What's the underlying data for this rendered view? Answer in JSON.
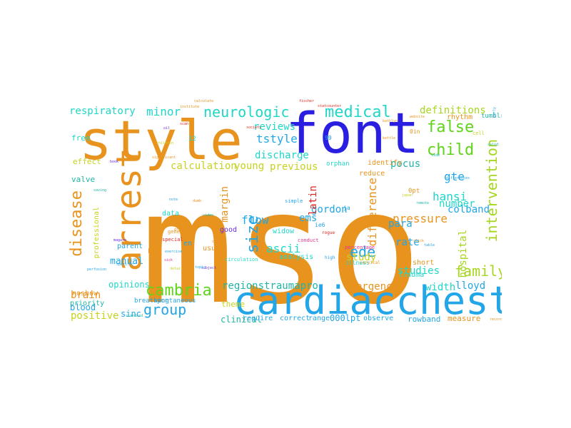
{
  "palette": {
    "orange": "#e8931e",
    "blue": "#2a1fe0",
    "sky": "#22a6e8",
    "green": "#5fd41a",
    "lime": "#a7d61f",
    "yellowgreen": "#c7d21f",
    "cyan": "#1fd6c8",
    "teal": "#1fb5a6",
    "red": "#e0261f",
    "pink": "#e2368b",
    "purple": "#6a2fe0",
    "gray": "#8a8a8a"
  },
  "words": [
    {
      "text": "mso",
      "color": "orange"
    },
    {
      "text": "font",
      "color": "blue"
    },
    {
      "text": "style",
      "color": "orange"
    },
    {
      "text": "cardiacchest",
      "color": "sky"
    },
    {
      "text": "arrest",
      "color": "orange"
    },
    {
      "text": "disease",
      "color": "orange"
    },
    {
      "text": "cambria",
      "color": "green"
    },
    {
      "text": "group",
      "color": "sky"
    },
    {
      "text": "medical",
      "color": "cyan"
    },
    {
      "text": "child",
      "color": "green"
    },
    {
      "text": "false",
      "color": "green"
    },
    {
      "text": "neurologic",
      "color": "cyan"
    },
    {
      "text": "intervention",
      "color": "lime"
    },
    {
      "text": "family",
      "color": "lime"
    },
    {
      "text": "ede",
      "color": "sky"
    },
    {
      "text": "size",
      "color": "sky"
    },
    {
      "text": "minor",
      "color": "cyan"
    },
    {
      "text": "respiratory",
      "color": "cyan"
    },
    {
      "text": "definitions",
      "color": "lime"
    },
    {
      "text": "difference",
      "color": "orange"
    },
    {
      "text": "pressure",
      "color": "orange"
    },
    {
      "text": "hansi",
      "color": "cyan"
    },
    {
      "text": "gte",
      "color": "sky"
    },
    {
      "text": "tstyle",
      "color": "sky"
    },
    {
      "text": "previous",
      "color": "yellowgreen"
    },
    {
      "text": "pocus",
      "color": "teal"
    },
    {
      "text": "calculation",
      "color": "yellowgreen"
    },
    {
      "text": "young",
      "color": "yellowgreen"
    },
    {
      "text": "margin",
      "color": "orange"
    },
    {
      "text": "ascii",
      "color": "cyan"
    },
    {
      "text": "flow",
      "color": "sky"
    },
    {
      "text": "gordon",
      "color": "sky"
    },
    {
      "text": "emergency",
      "color": "orange"
    },
    {
      "text": "regionstraumapro",
      "color": "teal"
    },
    {
      "text": "brain",
      "color": "orange"
    },
    {
      "text": "positive",
      "color": "yellowgreen"
    },
    {
      "text": "lloyd",
      "color": "sky"
    },
    {
      "text": "width",
      "color": "cyan"
    },
    {
      "text": "rate",
      "color": "sky"
    },
    {
      "text": "para",
      "color": "sky"
    },
    {
      "text": "studies",
      "color": "cyan"
    },
    {
      "text": "study",
      "color": "yellowgreen"
    },
    {
      "text": "hospital",
      "color": "lime"
    },
    {
      "text": "latin",
      "color": "red"
    },
    {
      "text": "ems",
      "color": "sky"
    },
    {
      "text": "reviews",
      "color": "cyan"
    },
    {
      "text": "discharge",
      "color": "cyan"
    },
    {
      "text": "colband",
      "color": "sky"
    },
    {
      "text": "number",
      "color": "cyan"
    },
    {
      "text": "injury",
      "color": "orange"
    },
    {
      "text": "manual",
      "color": "sky"
    },
    {
      "text": "sinc",
      "color": "sky"
    },
    {
      "text": "clinical",
      "color": "teal"
    },
    {
      "text": "require",
      "color": "sky"
    },
    {
      "text": "correct",
      "color": "sky"
    },
    {
      "text": "range",
      "color": "sky"
    },
    {
      "text": "000lpt",
      "color": "sky"
    },
    {
      "text": "observe",
      "color": "sky"
    },
    {
      "text": "rowband",
      "color": "sky"
    },
    {
      "text": "measure",
      "color": "orange"
    },
    {
      "text": "theme",
      "color": "yellowgreen"
    },
    {
      "text": "blood",
      "color": "sky"
    },
    {
      "text": "breathing",
      "color": "sky"
    },
    {
      "text": "spontaneous",
      "color": "sky"
    },
    {
      "text": "opinions",
      "color": "cyan"
    },
    {
      "text": "noshow",
      "color": "orange"
    },
    {
      "text": "priority",
      "color": "teal"
    },
    {
      "text": "free",
      "color": "cyan"
    },
    {
      "text": "effect",
      "color": "yellowgreen"
    },
    {
      "text": "valve",
      "color": "teal"
    },
    {
      "text": "professional",
      "color": "yellowgreen"
    },
    {
      "text": "data",
      "color": "cyan"
    },
    {
      "text": "parent",
      "color": "sky"
    },
    {
      "text": "usual",
      "color": "orange"
    },
    {
      "text": "widow",
      "color": "cyan"
    },
    {
      "text": "analysis",
      "color": "cyan"
    },
    {
      "text": "trauma",
      "color": "cyan"
    },
    {
      "text": "short",
      "color": "orange"
    },
    {
      "text": "reduce",
      "color": "orange"
    },
    {
      "text": "identify",
      "color": "orange"
    },
    {
      "text": "orphan",
      "color": "cyan"
    },
    {
      "text": "0pt",
      "color": "orange"
    },
    {
      "text": "rhythm",
      "color": "orange"
    },
    {
      "text": "tumblr",
      "color": "teal"
    },
    {
      "text": "service",
      "color": "orange"
    },
    {
      "text": "good",
      "color": "purple"
    },
    {
      "text": "en",
      "color": "sky"
    },
    {
      "text": "kid",
      "color": "orange"
    },
    {
      "text": "illness",
      "color": "cyan"
    },
    {
      "text": "ie6",
      "color": "sky"
    },
    {
      "text": "ja",
      "color": "sky"
    },
    {
      "text": "12",
      "color": "cyan"
    },
    {
      "text": "99",
      "color": "sky"
    },
    {
      "text": "0in",
      "color": "orange"
    },
    {
      "text": "cell",
      "color": "yellowgreen"
    },
    {
      "text": "circulation",
      "color": "cyan"
    },
    {
      "text": "simple",
      "color": "sky"
    },
    {
      "text": "high",
      "color": "sky"
    },
    {
      "text": "cervical",
      "color": "orange"
    },
    {
      "text": "special",
      "color": "red"
    },
    {
      "text": "general",
      "color": "orange"
    },
    {
      "text": "rogue",
      "color": "red"
    },
    {
      "text": "percentage",
      "color": "pink"
    },
    {
      "text": "conduct",
      "color": "pink"
    },
    {
      "text": "fischer",
      "color": "red"
    },
    {
      "text": "statcounter",
      "color": "red"
    },
    {
      "text": "society",
      "color": "red"
    },
    {
      "text": "institute",
      "color": "orange"
    },
    {
      "text": "calculate",
      "color": "orange"
    },
    {
      "text": "children",
      "color": "yellowgreen"
    },
    {
      "text": "significant",
      "color": "orange"
    },
    {
      "text": "differences",
      "color": "sky"
    },
    {
      "text": "oil",
      "color": "purple"
    },
    {
      "text": "scan",
      "color": "red"
    },
    {
      "text": "early",
      "color": "sky"
    },
    {
      "text": "side",
      "color": "teal"
    },
    {
      "text": "solid",
      "color": "teal"
    },
    {
      "text": "exercise",
      "color": "sky"
    },
    {
      "text": "subject",
      "color": "purple"
    },
    {
      "text": "standard",
      "color": "teal"
    },
    {
      "text": "record",
      "color": "orange"
    },
    {
      "text": "magare",
      "color": "purple"
    },
    {
      "text": "perfusion",
      "color": "sky"
    },
    {
      "text": "specific",
      "color": "sky"
    },
    {
      "text": "great",
      "color": "orange"
    },
    {
      "text": "sick",
      "color": "pink"
    },
    {
      "text": "detail",
      "color": "yellowgreen"
    },
    {
      "text": "topic",
      "color": "sky"
    },
    {
      "text": "saving",
      "color": "teal"
    },
    {
      "text": "book",
      "color": "purple"
    },
    {
      "text": "video",
      "color": "teal"
    },
    {
      "text": "clear",
      "color": "orange"
    },
    {
      "text": "note",
      "color": "sky"
    },
    {
      "text": "dumb",
      "color": "orange"
    },
    {
      "text": "click",
      "color": "orange"
    },
    {
      "text": "table",
      "color": "sky"
    },
    {
      "text": "kettle",
      "color": "orange"
    },
    {
      "text": "website",
      "color": "orange"
    },
    {
      "text": "kathlyn",
      "color": "orange"
    },
    {
      "text": "japan",
      "color": "yellowgreen"
    },
    {
      "text": "remote",
      "color": "teal"
    }
  ]
}
